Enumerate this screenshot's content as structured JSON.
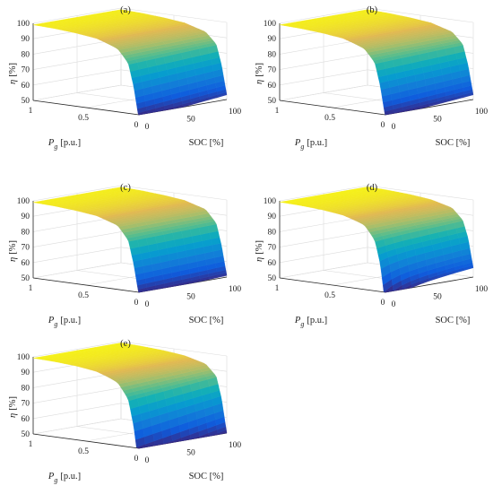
{
  "figure": {
    "background": "#ffffff"
  },
  "chart_data": [
    {
      "id": "a",
      "type": "surface3d",
      "title": "(a)",
      "xlabel_main": "P",
      "xlabel_sub": "g",
      "xlabel_unit": "[p.u.]",
      "ylabel": "SOC [%]",
      "zlabel_symbol": "η",
      "zlabel_unit": "[%]",
      "xticks": [
        "1",
        "0.5",
        "0"
      ],
      "yticks": [
        "0",
        "50",
        "100"
      ],
      "zticks": [
        "50",
        "60",
        "70",
        "80",
        "90",
        "100"
      ],
      "xlim": [
        0,
        1
      ],
      "ylim": [
        0,
        100
      ],
      "zlim": [
        50,
        100
      ],
      "efficiency_samples": {
        "P_g": [
          0,
          0.05,
          0.1,
          0.2,
          0.4,
          0.6,
          0.8,
          1.0
        ],
        "eta": [
          53,
          72,
          85,
          92,
          96,
          97.5,
          98.5,
          99
        ]
      },
      "soc_effect": 6,
      "edge_dip": 0,
      "colormap": "parula",
      "grid": true
    },
    {
      "id": "b",
      "type": "surface3d",
      "title": "(b)",
      "xlabel_main": "P",
      "xlabel_sub": "g",
      "xlabel_unit": "[p.u.]",
      "ylabel": "SOC [%]",
      "zlabel_symbol": "η",
      "zlabel_unit": "[%]",
      "xticks": [
        "1",
        "0.5",
        "0"
      ],
      "yticks": [
        "0",
        "50",
        "100"
      ],
      "zticks": [
        "50",
        "60",
        "70",
        "80",
        "90",
        "100"
      ],
      "xlim": [
        0,
        1
      ],
      "ylim": [
        0,
        100
      ],
      "zlim": [
        50,
        100
      ],
      "efficiency_samples": {
        "P_g": [
          0,
          0.05,
          0.1,
          0.2,
          0.4,
          0.6,
          0.8,
          1.0
        ],
        "eta": [
          53,
          72,
          85,
          92,
          96,
          97.5,
          98.5,
          99
        ]
      },
      "soc_effect": 5,
      "edge_dip": 0,
      "colormap": "parula",
      "grid": true
    },
    {
      "id": "c",
      "type": "surface3d",
      "title": "(c)",
      "xlabel_main": "P",
      "xlabel_sub": "g",
      "xlabel_unit": "[p.u.]",
      "ylabel": "SOC [%]",
      "zlabel_symbol": "η",
      "zlabel_unit": "[%]",
      "xticks": [
        "1",
        "0.5",
        "0"
      ],
      "yticks": [
        "0",
        "50",
        "100"
      ],
      "zticks": [
        "50",
        "60",
        "70",
        "80",
        "90",
        "100"
      ],
      "xlim": [
        0,
        1
      ],
      "ylim": [
        0,
        100
      ],
      "zlim": [
        50,
        100
      ],
      "efficiency_samples": {
        "P_g": [
          0,
          0.05,
          0.1,
          0.2,
          0.4,
          0.6,
          0.8,
          1.0
        ],
        "eta": [
          51,
          70,
          84,
          92,
          96,
          97.5,
          98.5,
          99
        ]
      },
      "soc_effect": 3,
      "edge_dip": 0,
      "colormap": "parula",
      "grid": true
    },
    {
      "id": "d",
      "type": "surface3d",
      "title": "(d)",
      "xlabel_main": "P",
      "xlabel_sub": "g",
      "xlabel_unit": "[p.u.]",
      "ylabel": "SOC [%]",
      "zlabel_symbol": "η",
      "zlabel_unit": "[%]",
      "xticks": [
        "1",
        "0.5",
        "0"
      ],
      "yticks": [
        "0",
        "50",
        "100"
      ],
      "zticks": [
        "50",
        "60",
        "70",
        "80",
        "90",
        "100"
      ],
      "xlim": [
        0,
        1
      ],
      "ylim": [
        0,
        100
      ],
      "zlim": [
        50,
        100
      ],
      "efficiency_samples": {
        "P_g": [
          0,
          0.05,
          0.1,
          0.2,
          0.4,
          0.6,
          0.8,
          1.0
        ],
        "eta": [
          56,
          75,
          86,
          93,
          96.5,
          98,
          98.8,
          99.2
        ]
      },
      "soc_effect": 6,
      "edge_dip": 10,
      "colormap": "parula",
      "grid": true
    },
    {
      "id": "e",
      "type": "surface3d",
      "title": "(e)",
      "xlabel_main": "P",
      "xlabel_sub": "g",
      "xlabel_unit": "[p.u.]",
      "ylabel": "SOC [%]",
      "zlabel_symbol": "η",
      "zlabel_unit": "[%]",
      "xticks": [
        "1",
        "0.5",
        "0"
      ],
      "yticks": [
        "0",
        "50",
        "100"
      ],
      "zticks": [
        "50",
        "60",
        "70",
        "80",
        "90",
        "100"
      ],
      "xlim": [
        0,
        1
      ],
      "ylim": [
        0,
        100
      ],
      "zlim": [
        50,
        100
      ],
      "efficiency_samples": {
        "P_g": [
          0,
          0.05,
          0.1,
          0.2,
          0.4,
          0.6,
          0.8,
          1.0
        ],
        "eta": [
          50,
          72,
          86,
          93,
          96.5,
          98,
          98.8,
          99.2
        ]
      },
      "soc_effect": 12,
      "edge_dip": 0,
      "colormap": "parula",
      "grid": true
    }
  ]
}
